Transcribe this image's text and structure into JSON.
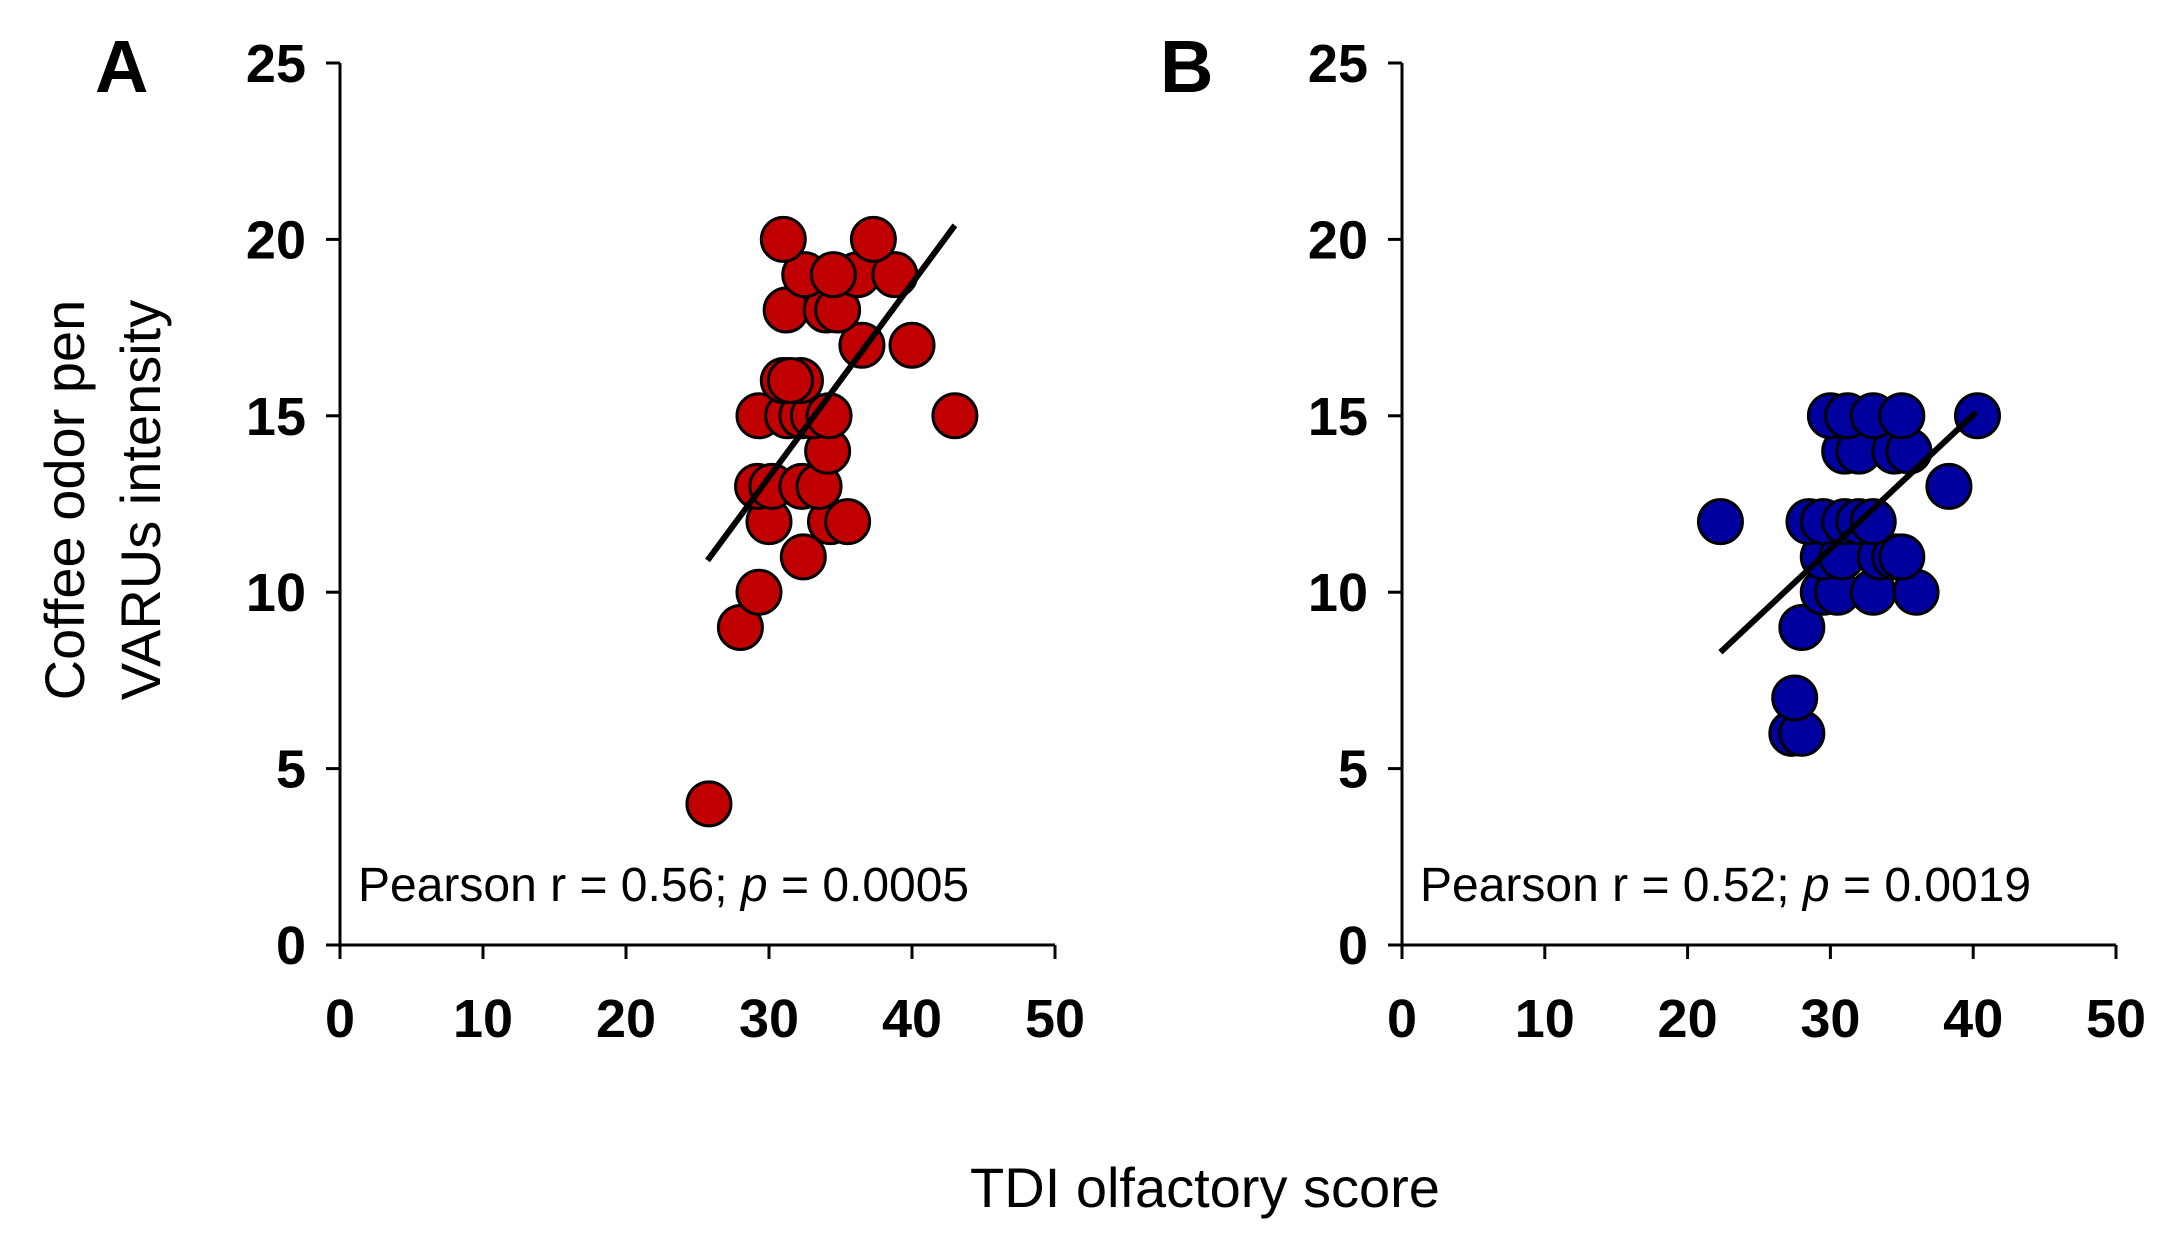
{
  "chart_data": [
    {
      "type": "scatter",
      "panel_label": "A",
      "color": "#c00000",
      "xlim": [
        0,
        50
      ],
      "ylim": [
        0,
        25
      ],
      "xticks": [
        "0",
        "10",
        "20",
        "30",
        "40",
        "50"
      ],
      "yticks": [
        "0",
        "5",
        "10",
        "15",
        "20",
        "25"
      ],
      "annotation": {
        "prefix": "Pearson r = 0.56; ",
        "p_symbol": "p",
        "suffix": " = 0.0005"
      },
      "points": [
        [
          25.8,
          4
        ],
        [
          28,
          9
        ],
        [
          29.3,
          10
        ],
        [
          32.4,
          11
        ],
        [
          30,
          12
        ],
        [
          34.3,
          12
        ],
        [
          35.5,
          12
        ],
        [
          29.2,
          13
        ],
        [
          30.2,
          13
        ],
        [
          32.3,
          13
        ],
        [
          33.5,
          13
        ],
        [
          34.1,
          14
        ],
        [
          29.3,
          15
        ],
        [
          31.3,
          15
        ],
        [
          32.3,
          15
        ],
        [
          33.1,
          15
        ],
        [
          34.2,
          15
        ],
        [
          43,
          15
        ],
        [
          31,
          16
        ],
        [
          32.2,
          16
        ],
        [
          31.5,
          16
        ],
        [
          36.5,
          17
        ],
        [
          40,
          17
        ],
        [
          31.2,
          18
        ],
        [
          34,
          18
        ],
        [
          34.8,
          18
        ],
        [
          32.5,
          19
        ],
        [
          36.2,
          19
        ],
        [
          34.5,
          19
        ],
        [
          38.8,
          19
        ],
        [
          31,
          20
        ],
        [
          37.3,
          20
        ]
      ],
      "trendline": {
        "x": [
          25.7,
          43
        ],
        "y": [
          10.9,
          20.4
        ]
      }
    },
    {
      "type": "scatter",
      "panel_label": "B",
      "color": "#00009e",
      "xlim": [
        0,
        50
      ],
      "ylim": [
        0,
        25
      ],
      "xticks": [
        "0",
        "10",
        "20",
        "30",
        "40",
        "50"
      ],
      "yticks": [
        "0",
        "5",
        "10",
        "15",
        "20",
        "25"
      ],
      "annotation": {
        "prefix": "Pearson r = 0.52; ",
        "p_symbol": "p",
        "suffix": " = 0.0019"
      },
      "points": [
        [
          27.3,
          6
        ],
        [
          28,
          6
        ],
        [
          27.5,
          7
        ],
        [
          28,
          9
        ],
        [
          29.5,
          10
        ],
        [
          30.5,
          10
        ],
        [
          33,
          10
        ],
        [
          36,
          10
        ],
        [
          29.5,
          11
        ],
        [
          30.8,
          11
        ],
        [
          33.5,
          11
        ],
        [
          34.5,
          11
        ],
        [
          35,
          11
        ],
        [
          22.3,
          12
        ],
        [
          28.5,
          12
        ],
        [
          29.5,
          12
        ],
        [
          31,
          12
        ],
        [
          32,
          12
        ],
        [
          33,
          12
        ],
        [
          38.3,
          13
        ],
        [
          31,
          14
        ],
        [
          32,
          14
        ],
        [
          34.5,
          14
        ],
        [
          35.5,
          14
        ],
        [
          30,
          15
        ],
        [
          31.2,
          15
        ],
        [
          33,
          15
        ],
        [
          35,
          15
        ],
        [
          40.3,
          15
        ]
      ],
      "trendline": {
        "x": [
          22.3,
          40.2
        ],
        "y": [
          8.3,
          15.1
        ]
      }
    }
  ],
  "y_axis_title": [
    "Coffee odor pen",
    "VARUs intensity"
  ],
  "x_axis_title": "TDI olfactory score"
}
